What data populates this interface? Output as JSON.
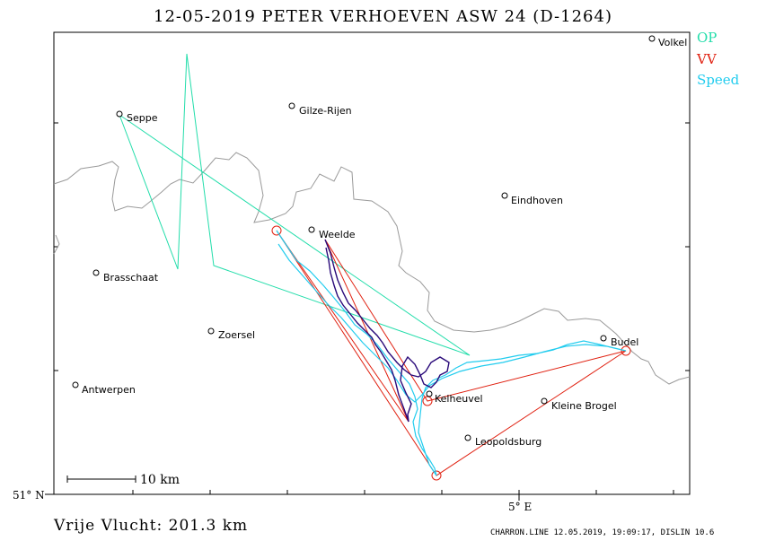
{
  "header": {
    "title": "12-05-2019   PETER VERHOEVEN   ASW 24 (D-1264)"
  },
  "legend": [
    {
      "label": "OP",
      "color": "#00cc88"
    },
    {
      "label": "VV",
      "color": "#dd2200"
    },
    {
      "label": "Speed",
      "color": "#00c8e0"
    }
  ],
  "places": [
    {
      "name": "Volkel"
    },
    {
      "name": "Seppe"
    },
    {
      "name": "Gilze-Rijen"
    },
    {
      "name": "Eindhoven"
    },
    {
      "name": "Weelde"
    },
    {
      "name": "Brasschaat"
    },
    {
      "name": "Zoersel"
    },
    {
      "name": "Budel"
    },
    {
      "name": "Antwerpen"
    },
    {
      "name": "Kelheuvel"
    },
    {
      "name": "Kleine Brogel"
    },
    {
      "name": "Leopoldsburg"
    }
  ],
  "axes": {
    "lat_label": "51° N",
    "lon_label": "5° E"
  },
  "scale_bar": {
    "label": "10 km"
  },
  "footer": {
    "distance": "Vrije Vlucht:  201.3 km",
    "credit": "CHARRON.LINE 12.05.2019, 19:09:17, DISLIN 10.6"
  },
  "colors": {
    "border": "#9a9a9a",
    "op": "#22ddaa",
    "vv": "#e02010",
    "speed": "#22ccee",
    "track": "#2a0a7a"
  }
}
